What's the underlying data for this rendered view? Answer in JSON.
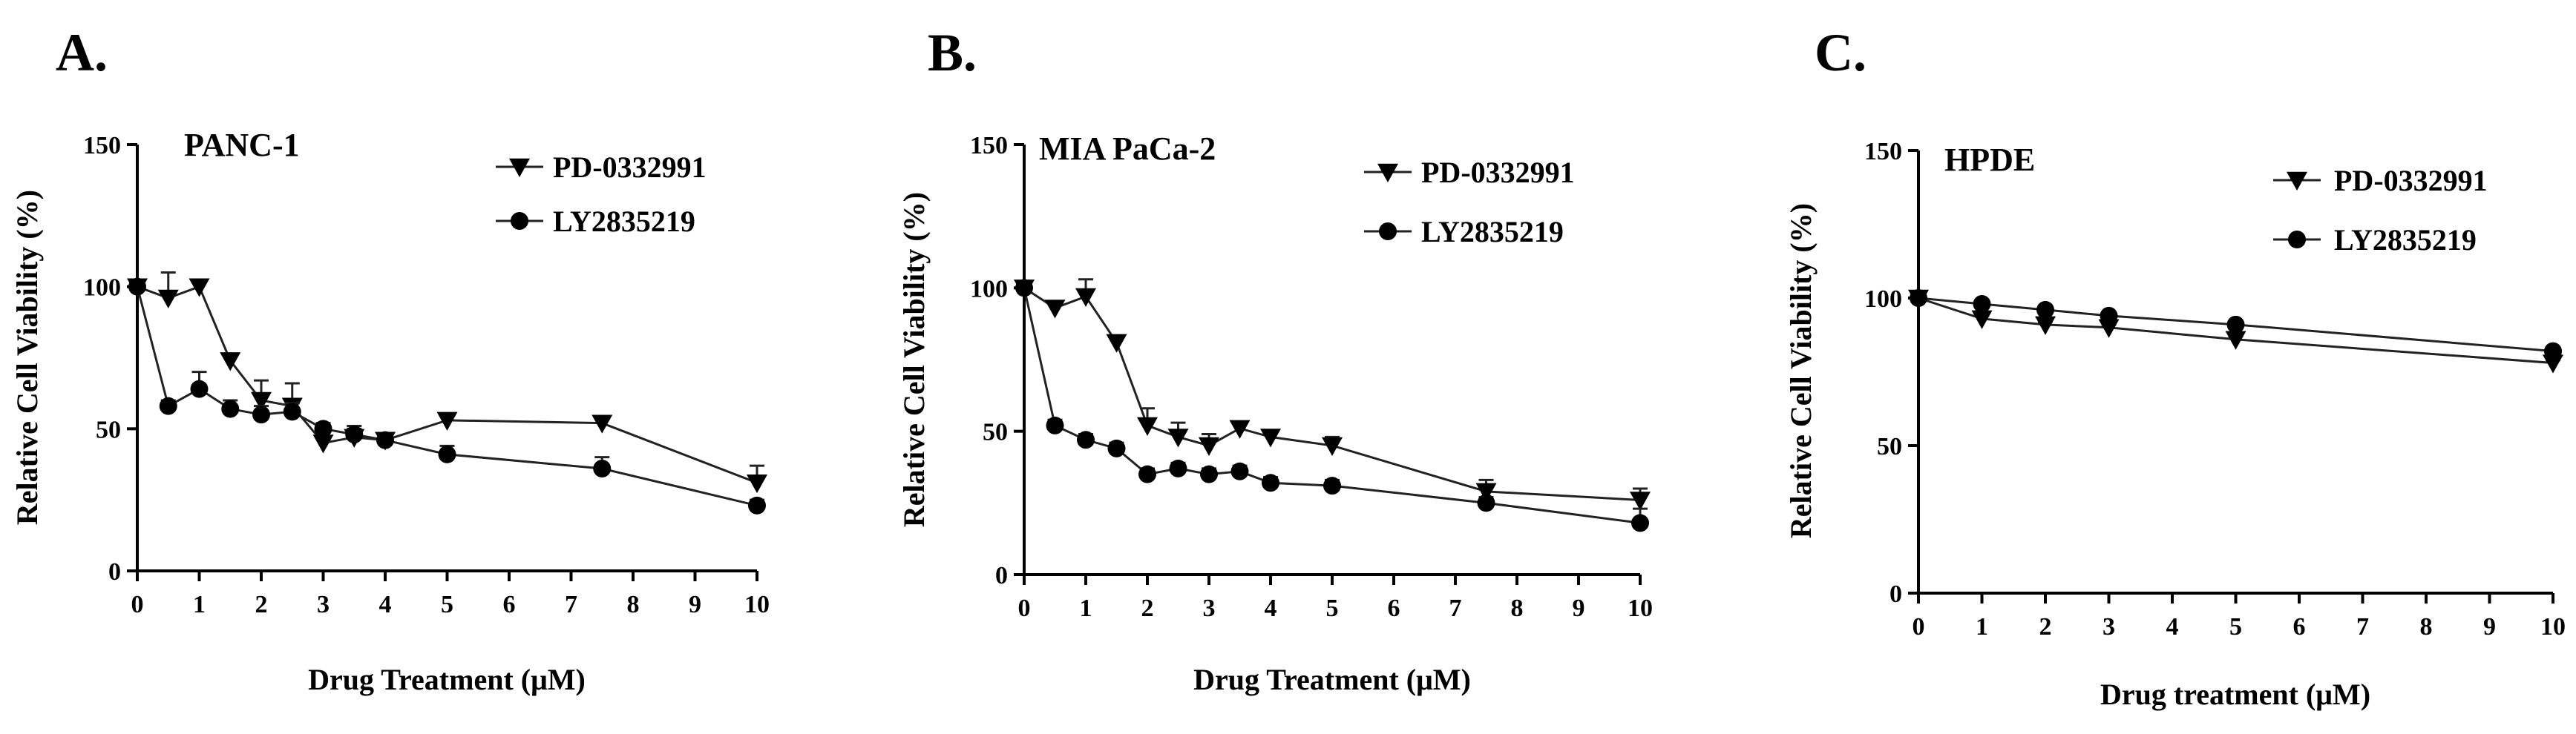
{
  "chart_data": [
    {
      "type": "line",
      "panel_label": "A.",
      "title": "PANC-1",
      "xlabel": "Drug Treatment (μM)",
      "ylabel": "Relative Cell Viability (%)",
      "xlim": [
        0,
        10
      ],
      "ylim": [
        0,
        150
      ],
      "xticks": [
        0,
        1,
        2,
        3,
        4,
        5,
        6,
        7,
        8,
        9,
        10
      ],
      "yticks": [
        0,
        50,
        100,
        150
      ],
      "legend_position": "top-right",
      "series": [
        {
          "name": "PD-0332991",
          "marker": "triangle-down",
          "x": [
            0,
            0.5,
            1,
            1.5,
            2,
            2.5,
            3,
            3.5,
            4,
            5,
            7.5,
            10
          ],
          "y": [
            100,
            96,
            100,
            74,
            60,
            58,
            45,
            47,
            46,
            53,
            52,
            31
          ],
          "err": [
            0,
            9,
            2,
            2,
            7,
            8,
            2,
            3,
            2,
            2,
            2,
            6
          ]
        },
        {
          "name": "LY2835219",
          "marker": "circle",
          "x": [
            0,
            0.5,
            1,
            1.5,
            2,
            2.5,
            3,
            3.5,
            4,
            5,
            7.5,
            10
          ],
          "y": [
            100,
            58,
            64,
            57,
            55,
            56,
            50,
            48,
            46,
            41,
            36,
            23
          ],
          "err": [
            0,
            2,
            6,
            3,
            3,
            3,
            2,
            3,
            2,
            3,
            4,
            2
          ]
        }
      ]
    },
    {
      "type": "line",
      "panel_label": "B.",
      "title": "MIA PaCa-2",
      "xlabel": "Drug Treatment (μM)",
      "ylabel": "Relative Cell Viability (%)",
      "xlim": [
        0,
        10
      ],
      "ylim": [
        0,
        150
      ],
      "xticks": [
        0,
        1,
        2,
        3,
        4,
        5,
        6,
        7,
        8,
        9,
        10
      ],
      "yticks": [
        0,
        50,
        100,
        150
      ],
      "legend_position": "top-right",
      "series": [
        {
          "name": "PD-0332991",
          "marker": "triangle-down",
          "x": [
            0,
            0.5,
            1,
            1.5,
            2,
            2.5,
            3,
            3.5,
            4,
            5,
            7.5,
            10
          ],
          "y": [
            100,
            93,
            97,
            81,
            52,
            48,
            45,
            51,
            48,
            45,
            29,
            26
          ],
          "err": [
            0,
            2,
            6,
            2,
            6,
            5,
            4,
            2,
            2,
            3,
            4,
            4
          ]
        },
        {
          "name": "LY2835219",
          "marker": "circle",
          "x": [
            0,
            0.5,
            1,
            1.5,
            2,
            2.5,
            3,
            3.5,
            4,
            5,
            7.5,
            10
          ],
          "y": [
            100,
            52,
            47,
            44,
            35,
            37,
            35,
            36,
            32,
            31,
            25,
            18
          ],
          "err": [
            0,
            2,
            2,
            2,
            2,
            2,
            2,
            2,
            2,
            2,
            2,
            5
          ]
        }
      ]
    },
    {
      "type": "line",
      "panel_label": "C.",
      "title": "HPDE",
      "xlabel": "Drug treatment (μM)",
      "ylabel": "Relative Cell Viability (%)",
      "xlim": [
        0,
        10
      ],
      "ylim": [
        0,
        150
      ],
      "xticks": [
        0,
        1,
        2,
        3,
        4,
        5,
        6,
        7,
        8,
        9,
        10
      ],
      "yticks": [
        0,
        50,
        100,
        150
      ],
      "legend_position": "top-right",
      "series": [
        {
          "name": "PD-0332991",
          "marker": "triangle-down",
          "x": [
            0,
            1,
            2,
            3,
            5,
            10
          ],
          "y": [
            100,
            93,
            91,
            90,
            86,
            78
          ],
          "err": [
            0,
            1,
            1,
            1,
            1,
            1
          ]
        },
        {
          "name": "LY2835219",
          "marker": "circle",
          "x": [
            0,
            1,
            2,
            3,
            5,
            10
          ],
          "y": [
            100,
            98,
            96,
            94,
            91,
            82
          ],
          "err": [
            0,
            1,
            1,
            1,
            1,
            1
          ]
        }
      ]
    }
  ]
}
